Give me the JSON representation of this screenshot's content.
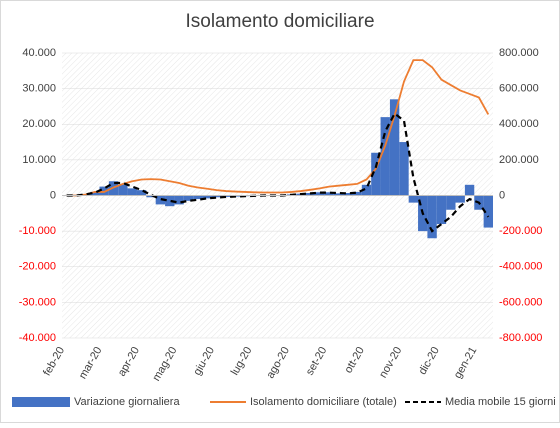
{
  "chart_data": {
    "type": "bar-line",
    "title": "Isolamento domiciliare",
    "categories": [
      "feb-20",
      null,
      null,
      null,
      "mar-20",
      null,
      null,
      null,
      "apr-20",
      null,
      null,
      null,
      "mag-20",
      null,
      null,
      null,
      "giu-20",
      null,
      null,
      null,
      "lug-20",
      null,
      null,
      null,
      "ago-20",
      null,
      null,
      null,
      "set-20",
      null,
      null,
      null,
      "ott-20",
      null,
      null,
      null,
      "nov-20",
      null,
      null,
      null,
      "dic-20",
      null,
      null,
      null,
      "gen-21",
      null
    ],
    "series": [
      {
        "name": "Variazione giornaliera",
        "kind": "bar",
        "color": "#4472c4",
        "axis": "y",
        "values": [
          0,
          0,
          300,
          1000,
          2500,
          4000,
          3000,
          2000,
          1500,
          -500,
          -2500,
          -3000,
          -2500,
          -1500,
          -1000,
          -800,
          -500,
          -400,
          -300,
          -200,
          0,
          0,
          100,
          100,
          300,
          500,
          700,
          900,
          900,
          600,
          700,
          1000,
          3000,
          12000,
          22000,
          27000,
          15000,
          -2000,
          -10000,
          -12000,
          -8000,
          -4000,
          -2000,
          3000,
          -4000,
          -9000
        ]
      },
      {
        "name": "Isolamento domiciliare (totale)",
        "kind": "line",
        "color": "#ed7d31",
        "axis": "y2",
        "values": [
          0,
          0,
          5000,
          20000,
          20000,
          45000,
          65000,
          80000,
          90000,
          92000,
          90000,
          80000,
          70000,
          55000,
          45000,
          38000,
          30000,
          25000,
          22000,
          20000,
          18000,
          17000,
          17000,
          17000,
          20000,
          25000,
          32000,
          40000,
          50000,
          55000,
          60000,
          65000,
          90000,
          150000,
          280000,
          450000,
          640000,
          760000,
          760000,
          720000,
          650000,
          620000,
          590000,
          570000,
          550000,
          455000
        ]
      },
      {
        "name": "Media mobile 15 giorni",
        "kind": "dashed",
        "color": "#000000",
        "axis": "y",
        "values": [
          0,
          0,
          300,
          800,
          2000,
          3500,
          3500,
          2500,
          1500,
          200,
          -1000,
          -1500,
          -2000,
          -1500,
          -1200,
          -800,
          -600,
          -400,
          -300,
          -200,
          -100,
          0,
          0,
          0,
          200,
          400,
          600,
          800,
          800,
          700,
          600,
          800,
          2000,
          8000,
          18000,
          23000,
          21000,
          5000,
          -5000,
          -10000,
          -8000,
          -6000,
          -3000,
          -1000,
          -2000,
          -6000
        ]
      }
    ],
    "ylim": [
      -40000,
      40000
    ],
    "yticks": [
      {
        "value": 40000,
        "label": "40.000"
      },
      {
        "value": 30000,
        "label": "30.000"
      },
      {
        "value": 20000,
        "label": "20.000"
      },
      {
        "value": 10000,
        "label": "10.000"
      },
      0,
      {
        "value": -10000,
        "label": "-10.000"
      },
      {
        "value": -20000,
        "label": "-20.000"
      },
      {
        "value": -30000,
        "label": "-30.000"
      },
      {
        "value": -40000,
        "label": "-40.000"
      }
    ],
    "y2lim": [
      -800000,
      800000
    ],
    "y2ticks": [
      {
        "value": 800000,
        "label": "800.000"
      },
      {
        "value": 600000,
        "label": "600.000"
      },
      {
        "value": 400000,
        "label": "400.000"
      },
      {
        "value": 200000,
        "label": "200.000"
      },
      0,
      {
        "value": -200000,
        "label": "-200.000"
      },
      {
        "value": -400000,
        "label": "-400.000"
      },
      {
        "value": -600000,
        "label": "-600.000"
      },
      {
        "value": -800000,
        "label": "-800.000"
      }
    ],
    "negative_tick_color": "#ff0000",
    "legend": "bottom"
  }
}
